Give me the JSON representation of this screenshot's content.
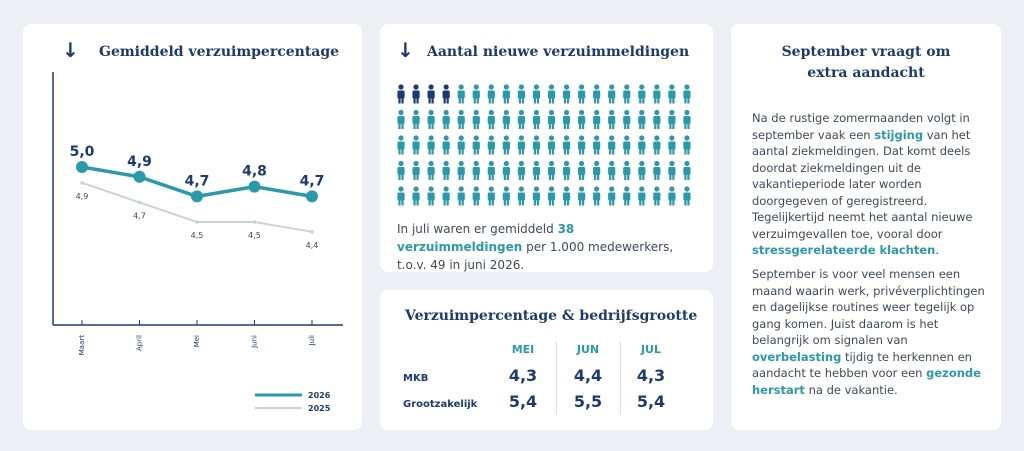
{
  "chart_card": {
    "arrow": "↓",
    "title": "Gemiddeld verzuimpercentage",
    "legend": [
      {
        "label": "2026",
        "color": "#2a9aa8"
      },
      {
        "label": "2025",
        "color": "#c9d3de"
      }
    ]
  },
  "chart_data": {
    "type": "line",
    "categories": [
      "Maart",
      "April",
      "Mei",
      "Juni",
      "Juli"
    ],
    "series": [
      {
        "name": "2026",
        "values": [
          5.0,
          4.9,
          4.7,
          4.8,
          4.7
        ],
        "labels": [
          "5,0",
          "4,9",
          "4,7",
          "4,8",
          "4,7"
        ],
        "color": "#2a9aa8"
      },
      {
        "name": "2025",
        "values": [
          4.9,
          4.7,
          4.5,
          4.5,
          4.4
        ],
        "labels": [
          "4,9",
          "4,7",
          "4,5",
          "4,5",
          "4,4"
        ],
        "color": "#c9d3de"
      }
    ],
    "ylim": [
      3.2,
      5.6
    ],
    "grid": false,
    "legend_position": "bottom-right"
  },
  "people_card": {
    "arrow": "↓",
    "title": "Aantal nieuwe verzuimmeldingen",
    "icon": "person-icon",
    "grid_total": 100,
    "highlighted_count": 4,
    "highlight_color": "#1d3a6e",
    "base_color": "#2a9aa8",
    "caption_pre": "In juli waren er gemiddeld ",
    "caption_hl": "38 verzuimmeldingen",
    "caption_post": " per 1.000 medewerkers, t.o.v. 49 in juni 2026."
  },
  "table_card": {
    "title": "Verzuimpercentage & bedrijfsgrootte",
    "columns": [
      "MEI",
      "JUN",
      "JUL"
    ],
    "rows": [
      {
        "label": "MKB",
        "values": [
          "4,3",
          "4,4",
          "4,3"
        ]
      },
      {
        "label": "Grootzakelijk",
        "values": [
          "5,4",
          "5,5",
          "5,4"
        ]
      }
    ]
  },
  "text_card": {
    "title_line1": "September vraagt om",
    "title_line2": "extra aandacht",
    "p1_a": "Na de rustige zomermaanden volgt in september vaak een ",
    "p1_hl1": "stijging",
    "p1_b": " van het aantal ziekmeldingen. Dat komt deels doordat ziekmeldingen uit de vakantieperiode later worden doorgegeven of geregistreerd. Tegelijkertijd neemt het aantal nieuwe verzuimgevallen toe, vooral door ",
    "p1_hl2": "stressgerelateerde klachten",
    "p1_c": ".",
    "p2_a": "September is voor veel mensen een maand waarin werk, privéverplichtingen en dagelijkse routines weer tegelijk op gang komen. Juist daarom is het belangrijk om signalen van ",
    "p2_hl1": "overbelasting",
    "p2_b": " tijdig te herkennen en aandacht te hebben voor een ",
    "p2_hl2": "gezonde herstart",
    "p2_c": " na de vakantie."
  }
}
